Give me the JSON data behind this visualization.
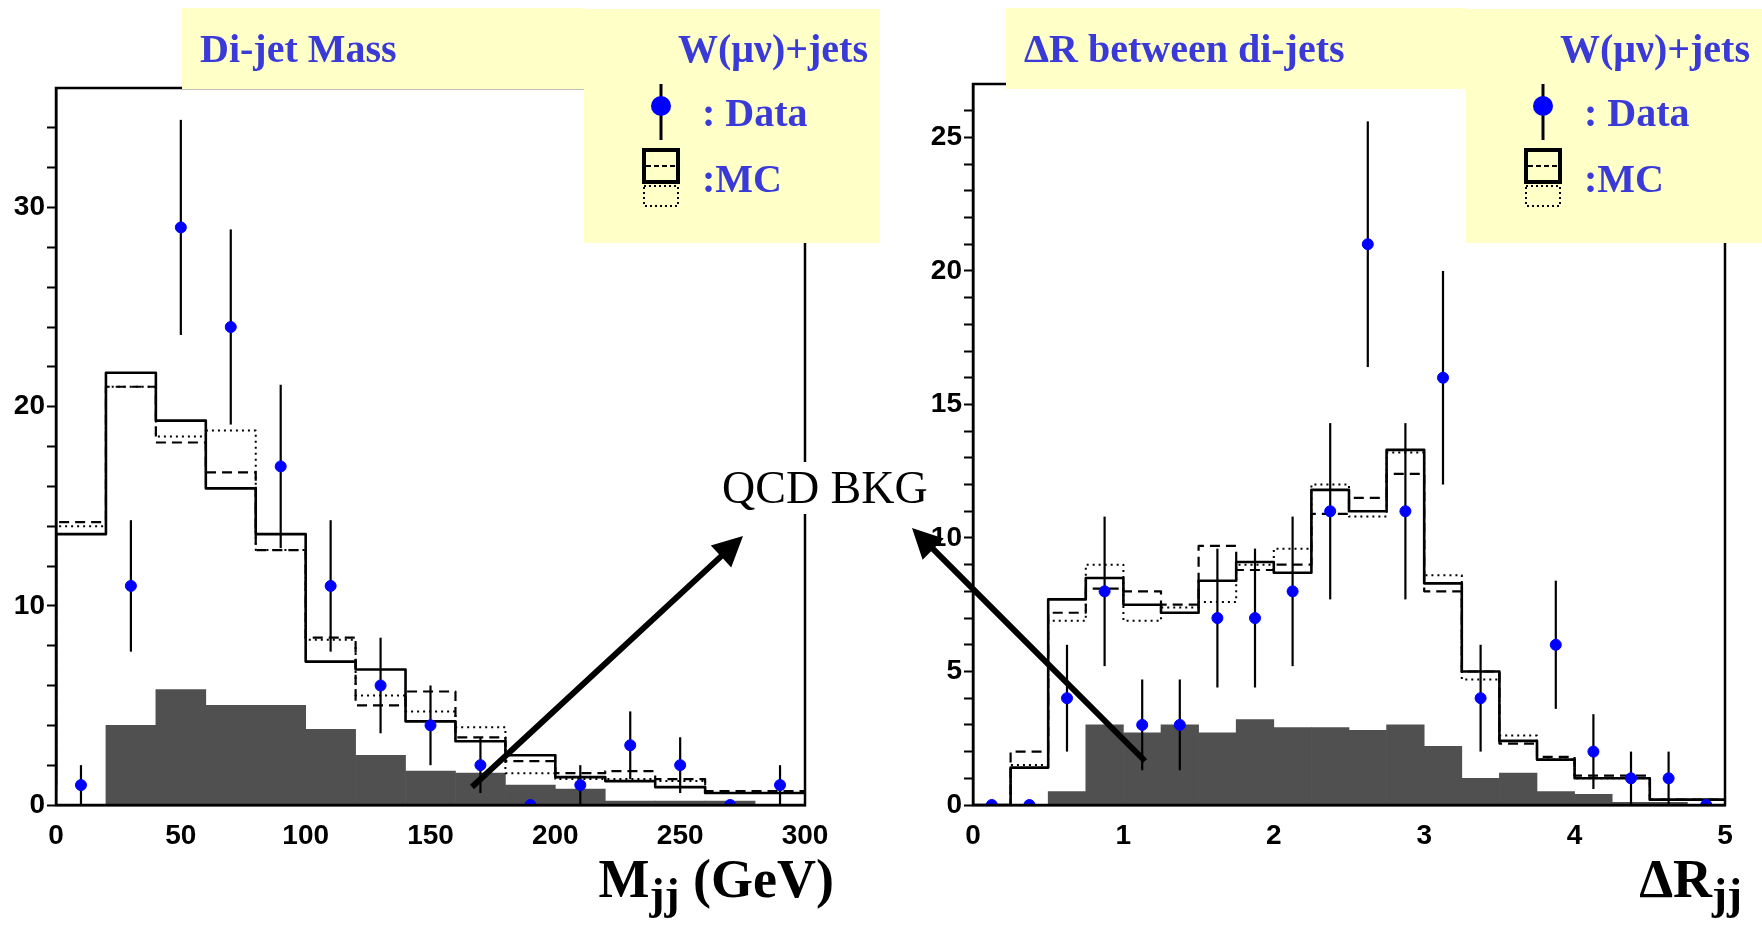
{
  "chart_data": [
    {
      "type": "histogram",
      "title": "Di-jet Mass",
      "legend_title": "W(μν)+jets",
      "xlabel": "M$_{jj}$ (GeV)",
      "legend": "top right",
      "annotations": [
        "QCD BKG"
      ],
      "bins": [
        0,
        20,
        40,
        60,
        80,
        100,
        120,
        140,
        160,
        180,
        200,
        220,
        240,
        260,
        280,
        300
      ],
      "xlim": [
        0,
        300
      ],
      "xticks": [
        0,
        50,
        100,
        150,
        200,
        250,
        300
      ],
      "ylim": [
        0,
        36
      ],
      "yticks": [
        0,
        {
          "value": 2,
          "label": null
        },
        {
          "value": 4,
          "label": null
        },
        {
          "value": 6,
          "label": null
        },
        {
          "value": 8,
          "label": null
        },
        10,
        {
          "value": 12,
          "label": null
        },
        {
          "value": 14,
          "label": null
        },
        {
          "value": 16,
          "label": null
        },
        {
          "value": 18,
          "label": null
        },
        20,
        {
          "value": 22,
          "label": null
        },
        {
          "value": 24,
          "label": null
        },
        {
          "value": 26,
          "label": null
        },
        {
          "value": 28,
          "label": null
        },
        30,
        {
          "value": 32,
          "label": null
        },
        {
          "value": 34,
          "label": null
        }
      ],
      "series": [
        {
          "type": "histogram",
          "color": "#505050",
          "values": [
            0,
            4.0,
            5.8,
            5.0,
            5.0,
            3.8,
            2.5,
            1.7,
            1.6,
            1.0,
            0.8,
            0.2,
            0.2,
            0.2,
            0
          ]
        },
        {
          "type": "scatter",
          "name": ": Data",
          "marker": "circle",
          "color": "#0000ff",
          "x": [
            10,
            30,
            50,
            70,
            90,
            110,
            130,
            150,
            170,
            190,
            210,
            230,
            250,
            270,
            290
          ],
          "values": [
            1,
            11,
            29,
            24,
            17,
            11,
            6,
            4,
            2,
            0,
            1,
            3,
            2,
            0,
            1
          ],
          "errors": [
            1,
            3.3,
            5.4,
            4.9,
            4.1,
            3.3,
            2.4,
            2,
            1.4,
            null,
            1,
            1.7,
            1.4,
            null,
            1
          ]
        },
        {
          "type": "step",
          "name": ":MC",
          "color": "#000000",
          "line_style": "solid",
          "x": [
            0,
            20,
            40,
            60,
            80,
            100,
            120,
            140,
            160,
            180,
            200,
            220,
            240,
            260,
            280,
            300
          ],
          "values": [
            1.0,
            13.6,
            21.7,
            19.3,
            15.9,
            13.6,
            7.2,
            6.8,
            4.2,
            3.2,
            2.5,
            1.4,
            1.2,
            0.9,
            0.6,
            0.6
          ]
        },
        {
          "type": "step",
          "color": "#000000",
          "line_style": "dashed",
          "x": [
            0,
            20,
            40,
            60,
            80,
            100,
            120,
            140,
            160,
            180,
            200,
            220,
            240,
            260,
            280,
            300
          ],
          "values": [
            0.7,
            14.2,
            21.0,
            18.2,
            16.7,
            12.8,
            8.4,
            5.0,
            5.7,
            3.4,
            2.2,
            1.6,
            1.7,
            1.3,
            0.7,
            0.7
          ]
        },
        {
          "type": "step",
          "color": "#000000",
          "line_style": "dotted",
          "x": [
            0,
            20,
            40,
            60,
            80,
            100,
            120,
            140,
            160,
            180,
            200,
            220,
            240,
            260,
            280,
            300
          ],
          "values": [
            0.6,
            14.0,
            21.0,
            18.5,
            18.8,
            12.8,
            8.3,
            5.5,
            4.7,
            3.9,
            1.6,
            1.3,
            1.3,
            1.2,
            0.6,
            0.6
          ]
        }
      ]
    },
    {
      "type": "histogram",
      "title": "ΔR between di-jets",
      "legend_title": "W(μν)+jets",
      "xlabel": "ΔR$_{jj}$",
      "legend": "top right",
      "bins": [
        0,
        0.25,
        0.5,
        0.75,
        1,
        1.25,
        1.5,
        1.75,
        2,
        2.25,
        2.5,
        2.75,
        3,
        3.25,
        3.5,
        3.75,
        4,
        4.25,
        4.5,
        4.75,
        5
      ],
      "xlim": [
        0,
        5
      ],
      "xticks": [
        0,
        1,
        2,
        3,
        4,
        5
      ],
      "ylim": [
        0,
        27
      ],
      "yticks": [
        0,
        {
          "value": 1,
          "label": null
        },
        {
          "value": 2,
          "label": null
        },
        {
          "value": 3,
          "label": null
        },
        {
          "value": 4,
          "label": null
        },
        5,
        {
          "value": 6,
          "label": null
        },
        {
          "value": 7,
          "label": null
        },
        {
          "value": 8,
          "label": null
        },
        {
          "value": 9,
          "label": null
        },
        10,
        {
          "value": 11,
          "label": null
        },
        {
          "value": 12,
          "label": null
        },
        {
          "value": 13,
          "label": null
        },
        {
          "value": 14,
          "label": null
        },
        15,
        {
          "value": 16,
          "label": null
        },
        {
          "value": 17,
          "label": null
        },
        {
          "value": 18,
          "label": null
        },
        {
          "value": 19,
          "label": null
        },
        20,
        {
          "value": 21,
          "label": null
        },
        {
          "value": 22,
          "label": null
        },
        {
          "value": 23,
          "label": null
        },
        {
          "value": 24,
          "label": null
        },
        25,
        {
          "value": 26,
          "label": null
        }
      ],
      "series": [
        {
          "type": "histogram",
          "color": "#505050",
          "values": [
            0,
            0,
            0.5,
            3.0,
            2.7,
            3.0,
            2.7,
            3.2,
            2.9,
            2.9,
            2.8,
            3.0,
            2.2,
            1.0,
            1.2,
            0.5,
            0.4,
            0.1,
            0.1,
            0
          ]
        },
        {
          "type": "scatter",
          "name": ": Data",
          "marker": "circle",
          "color": "#0000ff",
          "x": [
            0.125,
            0.375,
            0.625,
            0.875,
            1.125,
            1.375,
            1.625,
            1.875,
            2.125,
            2.375,
            2.625,
            2.875,
            3.125,
            3.375,
            3.625,
            3.875,
            4.125,
            4.375,
            4.625,
            4.875
          ],
          "values": [
            0,
            0,
            4,
            8,
            3,
            3,
            7,
            7,
            8,
            11,
            21,
            11,
            16,
            4,
            null,
            6,
            2,
            1,
            1,
            0
          ],
          "errors": [
            null,
            null,
            2,
            2.8,
            1.7,
            1.7,
            2.6,
            2.6,
            2.8,
            3.3,
            4.6,
            3.3,
            4,
            2,
            null,
            2.4,
            1.4,
            1,
            1,
            null
          ]
        },
        {
          "type": "step",
          "name": ":MC",
          "color": "#000000",
          "line_style": "solid",
          "x": [
            0,
            0.25,
            0.5,
            0.75,
            1,
            1.25,
            1.5,
            1.75,
            2,
            2.25,
            2.5,
            2.75,
            3,
            3.25,
            3.5,
            3.75,
            4,
            4.25,
            4.5,
            4.75,
            5
          ],
          "values": [
            0,
            0,
            1.4,
            7.7,
            8.5,
            7.5,
            7.2,
            8.4,
            9.1,
            8.7,
            11.8,
            11.0,
            13.3,
            8.3,
            5.0,
            2.4,
            1.7,
            1.0,
            1.0,
            0.2,
            0.2
          ]
        },
        {
          "type": "step",
          "color": "#000000",
          "line_style": "dashed",
          "x": [
            0,
            0.25,
            0.5,
            0.75,
            1,
            1.25,
            1.5,
            1.75,
            2,
            2.25,
            2.5,
            2.75,
            3,
            3.25,
            3.5,
            3.75,
            4,
            4.25,
            4.5,
            4.75,
            5
          ],
          "values": [
            0,
            0,
            2.0,
            7.2,
            8.1,
            8.0,
            7.5,
            9.7,
            8.8,
            9.0,
            10.9,
            11.5,
            12.4,
            8.0,
            5.0,
            2.3,
            1.8,
            1.1,
            1.1,
            0.2,
            0.2
          ]
        },
        {
          "type": "step",
          "color": "#000000",
          "line_style": "dotted",
          "x": [
            0,
            0.25,
            0.5,
            0.75,
            1,
            1.25,
            1.5,
            1.75,
            2,
            2.25,
            2.5,
            2.75,
            3,
            3.25,
            3.5,
            3.75,
            4,
            4.25,
            4.5,
            4.75,
            5
          ],
          "values": [
            0,
            0,
            1.5,
            6.9,
            9.0,
            6.9,
            7.4,
            7.6,
            9.0,
            9.6,
            12.0,
            10.8,
            13.2,
            8.6,
            4.7,
            2.6,
            1.7,
            1.0,
            1.0,
            0.2,
            0.2
          ]
        }
      ]
    }
  ]
}
